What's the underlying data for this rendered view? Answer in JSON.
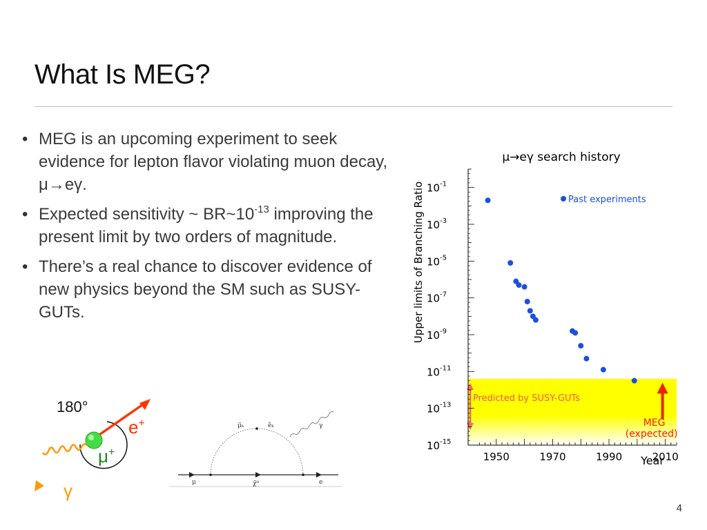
{
  "slide": {
    "title": "What Is MEG?",
    "bullets": [
      {
        "text": "MEG is an upcoming experiment to seek evidence for lepton flavor violating muon decay, μ→eγ."
      },
      {
        "pre": "Expected sensitivity ~ BR~10",
        "sup": "-13",
        "post": " improving the present limit by two orders of magnitude."
      },
      {
        "text": "There’s a real chance to discover evidence of new physics beyond the SM such as SUSY-GUTs."
      }
    ],
    "page_number": "4"
  },
  "decay_diagram": {
    "angle_label": "180°",
    "positron_label": "e",
    "positron_sup": "+",
    "muon_label": "μ",
    "muon_sup": "+",
    "photon_label": "γ",
    "colors": {
      "positron": "#ff3300",
      "muon": "#1a8a1a",
      "photon": "#ff9900",
      "muon_ball": "#44dd44"
    }
  },
  "feynman_diagram": {
    "labels": {
      "mu_in": "μ",
      "e_out": "e",
      "neutralino": "χ̃⁰",
      "smuon": "μ̃ₖ",
      "selectron": "ẽₖ",
      "photon": "γ"
    }
  },
  "chart_data": {
    "type": "scatter",
    "title": "μ→eγ search history",
    "xlabel": "Year",
    "ylabel": "Upper limits of Branching Ratio",
    "xlim": [
      1940,
      2014
    ],
    "ylim_log10": [
      -15,
      0
    ],
    "x_ticks": [
      "1950",
      "1970",
      "1990",
      "2010"
    ],
    "x_tick_values": [
      1950,
      1970,
      1990,
      2010
    ],
    "y_ticks": [
      {
        "base": "10",
        "exp": "-1",
        "log10": -1
      },
      {
        "base": "10",
        "exp": "-3",
        "log10": -3
      },
      {
        "base": "10",
        "exp": "-5",
        "log10": -5
      },
      {
        "base": "10",
        "exp": "-7",
        "log10": -7
      },
      {
        "base": "10",
        "exp": "-9",
        "log10": -9
      },
      {
        "base": "10",
        "exp": "-11",
        "log10": -11
      },
      {
        "base": "10",
        "exp": "-13",
        "log10": -13
      },
      {
        "base": "10",
        "exp": "-15",
        "log10": -15
      }
    ],
    "legend": {
      "label": "Past experiments",
      "placement": "top-right"
    },
    "series": [
      {
        "name": "Past experiments",
        "color": "#1a4fe0",
        "points": [
          {
            "year": 1947,
            "log10_br": -1.7
          },
          {
            "year": 1955,
            "log10_br": -5.1
          },
          {
            "year": 1957,
            "log10_br": -6.1
          },
          {
            "year": 1958,
            "log10_br": -6.3
          },
          {
            "year": 1960,
            "log10_br": -6.4
          },
          {
            "year": 1961,
            "log10_br": -7.2
          },
          {
            "year": 1962,
            "log10_br": -7.7
          },
          {
            "year": 1963,
            "log10_br": -8.0
          },
          {
            "year": 1964,
            "log10_br": -8.2
          },
          {
            "year": 1977,
            "log10_br": -8.8
          },
          {
            "year": 1978,
            "log10_br": -8.9
          },
          {
            "year": 1980,
            "log10_br": -9.6
          },
          {
            "year": 1982,
            "log10_br": -10.3
          },
          {
            "year": 1988,
            "log10_br": -10.9
          },
          {
            "year": 1999,
            "log10_br": -11.5
          }
        ]
      }
    ],
    "band": {
      "label": "Predicted by SUSY-GUTs",
      "log10_range": [
        -15,
        -11.4
      ],
      "color": "#ffff00",
      "arrow_color": "#ff6666"
    },
    "annotation": {
      "label_line1": "MEG",
      "label_line2": "(expected)",
      "year": 2009,
      "arrow_from_log10": -15,
      "arrow_to_log10": -11.6,
      "color": "#ee2200"
    }
  }
}
